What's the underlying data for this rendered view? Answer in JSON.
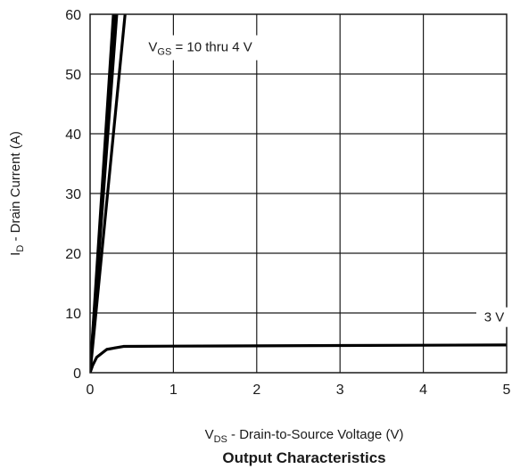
{
  "chart_data": {
    "type": "line",
    "title": "Output Characteristics",
    "xlabel": {
      "main": "V",
      "sub": "DS",
      "rest": " - Drain-to-Source Voltage (V)"
    },
    "ylabel": {
      "main": "I",
      "sub": "D",
      "rest": " - Drain Current (A)"
    },
    "xlim": [
      0,
      5
    ],
    "ylim": [
      0,
      60
    ],
    "xticks": [
      0,
      1,
      2,
      3,
      4,
      5
    ],
    "yticks": [
      0,
      10,
      20,
      30,
      40,
      50,
      60
    ],
    "grid": true,
    "series": [
      {
        "x": [
          0,
          0.28
        ],
        "y": [
          0,
          60
        ]
      },
      {
        "x": [
          0,
          0.3
        ],
        "y": [
          0,
          60
        ]
      },
      {
        "x": [
          0,
          0.32
        ],
        "y": [
          0,
          60
        ]
      },
      {
        "x": [
          0,
          0.42
        ],
        "y": [
          0,
          60
        ]
      },
      {
        "x": [
          0,
          0.03,
          0.08,
          0.2,
          0.4,
          1,
          2,
          3,
          4,
          5
        ],
        "y": [
          0,
          1.2,
          2.6,
          3.9,
          4.4,
          4.45,
          4.5,
          4.55,
          4.6,
          4.65
        ]
      }
    ],
    "annotations": [
      {
        "main": "V",
        "sub": "GS",
        "rest": " = 10 thru 4 V",
        "x": 0.7,
        "y": 53.8
      },
      {
        "text": "3 V",
        "x": 4.85,
        "y": 9.3
      }
    ],
    "line_color": "#000000"
  }
}
